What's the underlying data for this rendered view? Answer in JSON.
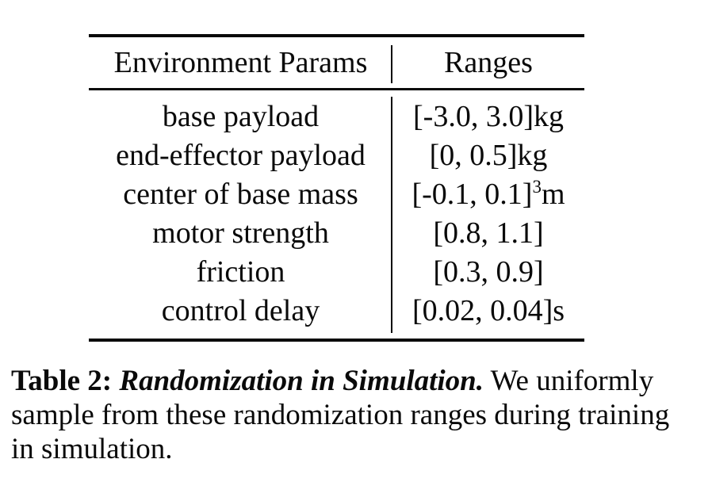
{
  "colors": {
    "background": "#ffffff",
    "text": "#0a0a0a",
    "rule": "#0a0a0a"
  },
  "table": {
    "columns": [
      {
        "label": "Environment Params"
      },
      {
        "label": "Ranges"
      }
    ],
    "rows": [
      {
        "param": "base payload",
        "range": "[-3.0, 3.0]",
        "sup": "",
        "unit": "kg"
      },
      {
        "param": "end-effector payload",
        "range": "[0, 0.5]",
        "sup": "",
        "unit": "kg"
      },
      {
        "param": "center of base mass",
        "range": "[-0.1, 0.1]",
        "sup": "3",
        "unit": "m"
      },
      {
        "param": "motor strength",
        "range": "[0.8, 1.1]",
        "sup": "",
        "unit": ""
      },
      {
        "param": "friction",
        "range": "[0.3, 0.9]",
        "sup": "",
        "unit": ""
      },
      {
        "param": "control delay",
        "range": "[0.02, 0.04]",
        "sup": "",
        "unit": "s"
      }
    ]
  },
  "caption": {
    "label": "Table 2:",
    "title": "Randomization in Simulation.",
    "body": "We uniformly sample from these randomization ranges during training in simulation."
  }
}
